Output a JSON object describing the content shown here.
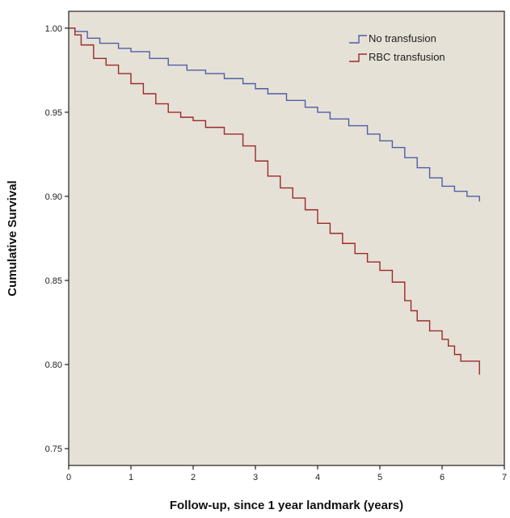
{
  "colors": {
    "plot_background": "#e6e1d7",
    "axis": "#222222",
    "no_transfusion": "#4f5ea6",
    "rbc_transfusion": "#9b2b2b"
  },
  "chart_data": {
    "type": "line",
    "title": "",
    "xlabel": "Follow-up, since 1 year landmark (years)",
    "ylabel": "Cumulative Survival",
    "xlim": [
      0,
      7
    ],
    "ylim": [
      0.74,
      1.01
    ],
    "x_ticks": [
      "0",
      "1",
      "2",
      "3",
      "4",
      "5",
      "6",
      "7"
    ],
    "y_ticks": [
      "0.75",
      "0.80",
      "0.85",
      "0.90",
      "0.95",
      "1.00"
    ],
    "grid": false,
    "legend_position": "top-right",
    "step": true,
    "series": [
      {
        "name": "No transfusion",
        "color_key": "no_transfusion",
        "x": [
          0,
          0.1,
          0.3,
          0.5,
          0.8,
          1.0,
          1.3,
          1.6,
          1.9,
          2.2,
          2.5,
          2.8,
          3.0,
          3.2,
          3.5,
          3.8,
          4.0,
          4.2,
          4.5,
          4.8,
          5.0,
          5.2,
          5.4,
          5.6,
          5.8,
          6.0,
          6.2,
          6.4,
          6.6
        ],
        "y": [
          1.0,
          0.998,
          0.994,
          0.991,
          0.988,
          0.986,
          0.982,
          0.978,
          0.975,
          0.973,
          0.97,
          0.967,
          0.964,
          0.961,
          0.957,
          0.953,
          0.95,
          0.946,
          0.942,
          0.937,
          0.933,
          0.929,
          0.923,
          0.917,
          0.911,
          0.906,
          0.903,
          0.9,
          0.897
        ]
      },
      {
        "name": "RBC transfusion",
        "color_key": "rbc_transfusion",
        "x": [
          0,
          0.1,
          0.2,
          0.4,
          0.6,
          0.8,
          1.0,
          1.2,
          1.4,
          1.6,
          1.8,
          2.0,
          2.2,
          2.5,
          2.8,
          3.0,
          3.2,
          3.4,
          3.6,
          3.8,
          4.0,
          4.2,
          4.4,
          4.6,
          4.8,
          5.0,
          5.2,
          5.4,
          5.5,
          5.6,
          5.8,
          6.0,
          6.1,
          6.2,
          6.3,
          6.6
        ],
        "y": [
          1.0,
          0.996,
          0.99,
          0.982,
          0.978,
          0.973,
          0.967,
          0.961,
          0.955,
          0.95,
          0.947,
          0.945,
          0.941,
          0.937,
          0.93,
          0.921,
          0.912,
          0.905,
          0.899,
          0.892,
          0.884,
          0.878,
          0.872,
          0.866,
          0.861,
          0.856,
          0.849,
          0.838,
          0.832,
          0.826,
          0.82,
          0.815,
          0.811,
          0.806,
          0.802,
          0.794
        ]
      }
    ]
  }
}
